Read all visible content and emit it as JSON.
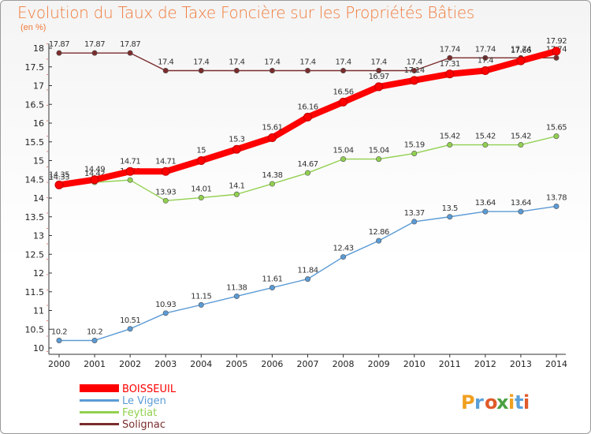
{
  "chart_data": {
    "type": "line",
    "title": "Evolution du Taux de Taxe Foncière sur les Propriétés Bâties",
    "ylabel": "(en %)",
    "x": [
      "2000",
      "2001",
      "2002",
      "2003",
      "2004",
      "2005",
      "2006",
      "2007",
      "2008",
      "2009",
      "2010",
      "2011",
      "2012",
      "2013",
      "2014"
    ],
    "ylim": [
      10,
      18
    ],
    "yticks": [
      "10",
      "10.5",
      "11",
      "11.5",
      "12",
      "12.5",
      "13",
      "13.5",
      "14",
      "14.5",
      "15",
      "15.5",
      "16",
      "16.5",
      "17",
      "17.5",
      "18"
    ],
    "grid": false,
    "legend_position": "bottom-left",
    "series": [
      {
        "name": "BOISSEUIL",
        "color": "#ff0000",
        "values": [
          14.35,
          14.49,
          14.71,
          14.71,
          15,
          15.3,
          15.61,
          16.16,
          16.56,
          16.97,
          17.14,
          17.31,
          17.4,
          17.66,
          17.92
        ],
        "labels": [
          "14.35",
          "14.49",
          "14.71",
          "14.71",
          "15",
          "15.3",
          "15.61",
          "16.16",
          "16.56",
          "16.97",
          "17.14",
          "17.31",
          "17.4",
          "17.66",
          "17.92"
        ]
      },
      {
        "name": "Le Vigen",
        "color": "#5b9bd5",
        "values": [
          10.2,
          10.2,
          10.51,
          10.93,
          11.15,
          11.38,
          11.61,
          11.84,
          12.43,
          12.86,
          13.37,
          13.5,
          13.64,
          13.64,
          13.78
        ],
        "labels": [
          "10.2",
          "10.2",
          "10.51",
          "10.93",
          "11.15",
          "11.38",
          "11.61",
          "11.84",
          "12.43",
          "12.86",
          "13.37",
          "13.5",
          "13.64",
          "13.64",
          "13.78"
        ]
      },
      {
        "name": "Feytiat",
        "color": "#92d050",
        "values": [
          14.33,
          14.42,
          14.48,
          13.93,
          14.01,
          14.1,
          14.38,
          14.67,
          15.04,
          15.04,
          15.19,
          15.42,
          15.42,
          15.42,
          15.65
        ],
        "labels": [
          "14.33",
          "14.42",
          "14.48",
          "13.93",
          "14.01",
          "14.1",
          "14.38",
          "14.67",
          "15.04",
          "15.04",
          "15.19",
          "15.42",
          "15.42",
          "15.42",
          "15.65"
        ]
      },
      {
        "name": "Solignac",
        "color": "#7b2c2c",
        "values": [
          17.87,
          17.87,
          17.87,
          17.4,
          17.4,
          17.4,
          17.4,
          17.4,
          17.4,
          17.4,
          17.4,
          17.74,
          17.74,
          17.74,
          17.74
        ],
        "labels": [
          "17.87",
          "17.87",
          "17.87",
          "17.4",
          "17.4",
          "17.4",
          "17.4",
          "17.4",
          "17.4",
          "17.4",
          "17.4",
          "17.74",
          "17.74",
          "17.74",
          "17.74"
        ]
      }
    ]
  },
  "logo": {
    "text": "Proxiti"
  }
}
